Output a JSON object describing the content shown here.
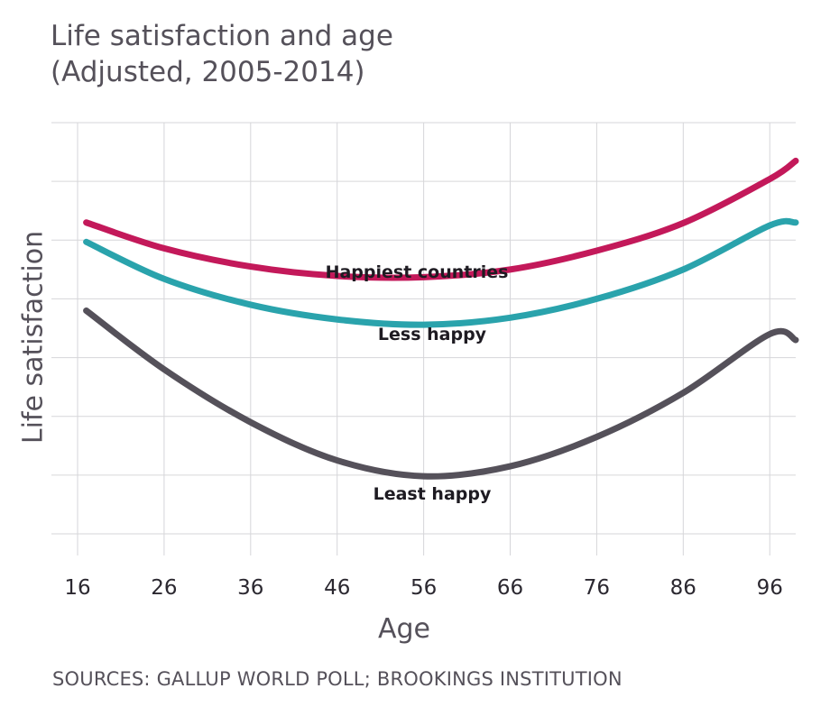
{
  "chart_data": {
    "type": "line",
    "title": "Life satisfaction and age",
    "subtitle": "(Adjusted, 2005-2014)",
    "xlabel": "Age",
    "ylabel": "Life satisfaction",
    "xlim": [
      16,
      99
    ],
    "x_ticks": [
      16,
      26,
      36,
      46,
      56,
      66,
      76,
      86,
      96
    ],
    "ylim": [
      0,
      7
    ],
    "y_gridlines": [
      0,
      1,
      2,
      3,
      4,
      5,
      6,
      7
    ],
    "grid": true,
    "legend": "none",
    "series": [
      {
        "name": "Happiest countries",
        "color": "#c3195a",
        "x": [
          17,
          26,
          36,
          46,
          56,
          66,
          76,
          86,
          96,
          99
        ],
        "y": [
          5.3,
          4.86,
          4.55,
          4.39,
          4.37,
          4.5,
          4.82,
          5.29,
          6.04,
          6.35
        ]
      },
      {
        "name": "Less happy",
        "color": "#2aa3ac",
        "x": [
          17,
          26,
          36,
          46,
          56,
          66,
          76,
          86,
          96,
          99
        ],
        "y": [
          4.97,
          4.34,
          3.9,
          3.65,
          3.56,
          3.68,
          4.0,
          4.5,
          5.25,
          5.3
        ]
      },
      {
        "name": "Least happy",
        "color": "#55515a",
        "x": [
          17,
          26,
          36,
          46,
          56,
          66,
          76,
          86,
          96,
          99
        ],
        "y": [
          3.8,
          2.8,
          1.9,
          1.25,
          0.98,
          1.15,
          1.65,
          2.4,
          3.4,
          3.3
        ]
      }
    ]
  },
  "source": "SOURCES: GALLUP WORLD POLL; BROOKINGS INSTITUTION"
}
